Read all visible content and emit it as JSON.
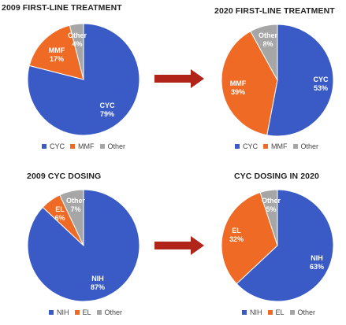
{
  "colors": {
    "CYC": "#3a5bc6",
    "NIH": "#3a5bc6",
    "MMF": "#ee6a25",
    "EL": "#ee6a25",
    "Other": "#a6a6a6",
    "arrow": "#b02419"
  },
  "chart_data": [
    {
      "type": "pie",
      "title": "2009 FIRST-LINE TREATMENT",
      "slices": [
        {
          "name": "CYC",
          "label": "CYC",
          "value": 79,
          "pct_label": "79%"
        },
        {
          "name": "MMF",
          "label": "MMF",
          "value": 17,
          "pct_label": "17%"
        },
        {
          "name": "Other",
          "label": "Other",
          "value": 4,
          "pct_label": "4%"
        }
      ],
      "legend": [
        "CYC",
        "MMF",
        "Other"
      ]
    },
    {
      "type": "pie",
      "title": "2020 FIRST-LINE TREATMENT",
      "slices": [
        {
          "name": "CYC",
          "label": "CYC",
          "value": 53,
          "pct_label": "53%"
        },
        {
          "name": "MMF",
          "label": "MMF",
          "value": 39,
          "pct_label": "39%"
        },
        {
          "name": "Other",
          "label": "Other",
          "value": 8,
          "pct_label": "8%"
        }
      ],
      "legend": [
        "CYC",
        "MMF",
        "Other"
      ]
    },
    {
      "type": "pie",
      "title": "2009 CYC DOSING",
      "slices": [
        {
          "name": "NIH",
          "label": "NIH",
          "value": 87,
          "pct_label": "87%"
        },
        {
          "name": "EL",
          "label": "EL",
          "value": 6,
          "pct_label": "6%"
        },
        {
          "name": "Other",
          "label": "Other",
          "value": 7,
          "pct_label": "7%"
        }
      ],
      "legend": [
        "NIH",
        "EL",
        "Other"
      ]
    },
    {
      "type": "pie",
      "title": "CYC DOSING IN 2020",
      "slices": [
        {
          "name": "NIH",
          "label": "NIH",
          "value": 63,
          "pct_label": "63%"
        },
        {
          "name": "EL",
          "label": "EL",
          "value": 32,
          "pct_label": "32%"
        },
        {
          "name": "Other",
          "label": "Other",
          "value": 5,
          "pct_label": "5%"
        }
      ],
      "legend": [
        "NIH",
        "EL",
        "Other"
      ]
    }
  ]
}
